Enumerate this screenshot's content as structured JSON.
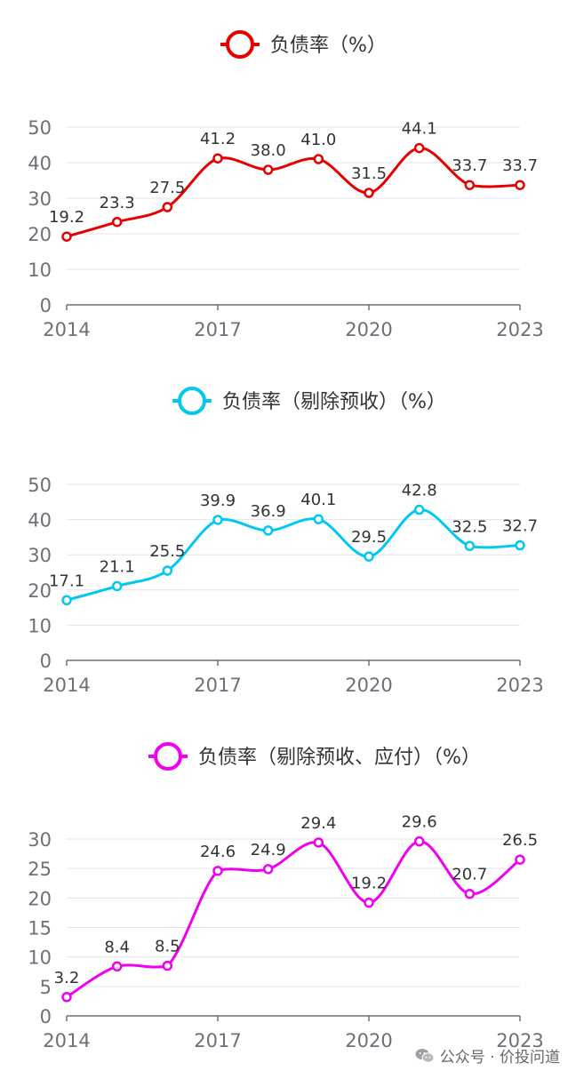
{
  "chart_data": [
    {
      "type": "line",
      "title": "负债率（%）",
      "color": "#e60000",
      "categories": [
        "2014",
        "2015",
        "2016",
        "2017",
        "2018",
        "2019",
        "2020",
        "2021",
        "2022",
        "2023"
      ],
      "values": [
        19.2,
        23.3,
        27.5,
        41.2,
        38.0,
        41.0,
        31.5,
        44.1,
        33.7,
        33.7
      ],
      "value_labels": [
        "19.2",
        "23.3",
        "27.5",
        "41.2",
        "38.0",
        "41.0",
        "31.5",
        "44.1",
        "33.7",
        "33.7"
      ],
      "x_tick_labels": [
        "2014",
        "2017",
        "2020",
        "2023"
      ],
      "y_ticks": [
        "0",
        "10",
        "20",
        "30",
        "40",
        "50"
      ],
      "ylim": [
        0,
        50
      ],
      "legend": "top-center"
    },
    {
      "type": "line",
      "title": "负债率（剔除预收）（%）",
      "color": "#00c8f0",
      "categories": [
        "2014",
        "2015",
        "2016",
        "2017",
        "2018",
        "2019",
        "2020",
        "2021",
        "2022",
        "2023"
      ],
      "values": [
        17.1,
        21.1,
        25.5,
        39.9,
        36.9,
        40.1,
        29.5,
        42.8,
        32.5,
        32.7
      ],
      "value_labels": [
        "17.1",
        "21.1",
        "25.5",
        "39.9",
        "36.9",
        "40.1",
        "29.5",
        "42.8",
        "32.5",
        "32.7"
      ],
      "x_tick_labels": [
        "2014",
        "2017",
        "2020",
        "2023"
      ],
      "y_ticks": [
        "0",
        "10",
        "20",
        "30",
        "40",
        "50"
      ],
      "ylim": [
        0,
        50
      ],
      "legend": "top-center"
    },
    {
      "type": "line",
      "title": "负债率（剔除预收、应付）（%）",
      "color": "#f000f0",
      "categories": [
        "2014",
        "2015",
        "2016",
        "2017",
        "2018",
        "2019",
        "2020",
        "2021",
        "2022",
        "2023"
      ],
      "values": [
        3.2,
        8.4,
        8.5,
        24.6,
        24.9,
        29.4,
        19.2,
        29.6,
        20.7,
        26.5
      ],
      "value_labels": [
        "3.2",
        "8.4",
        "8.5",
        "24.6",
        "24.9",
        "29.4",
        "19.2",
        "29.6",
        "20.7",
        "26.5"
      ],
      "x_tick_labels": [
        "2014",
        "2017",
        "2020",
        "2023"
      ],
      "y_ticks": [
        "0",
        "5",
        "10",
        "15",
        "20",
        "25",
        "30"
      ],
      "ylim": [
        0,
        30
      ],
      "legend": "top-center"
    }
  ],
  "watermark": {
    "text": "公众号 · 价投问道",
    "icon": "wechat-icon"
  }
}
